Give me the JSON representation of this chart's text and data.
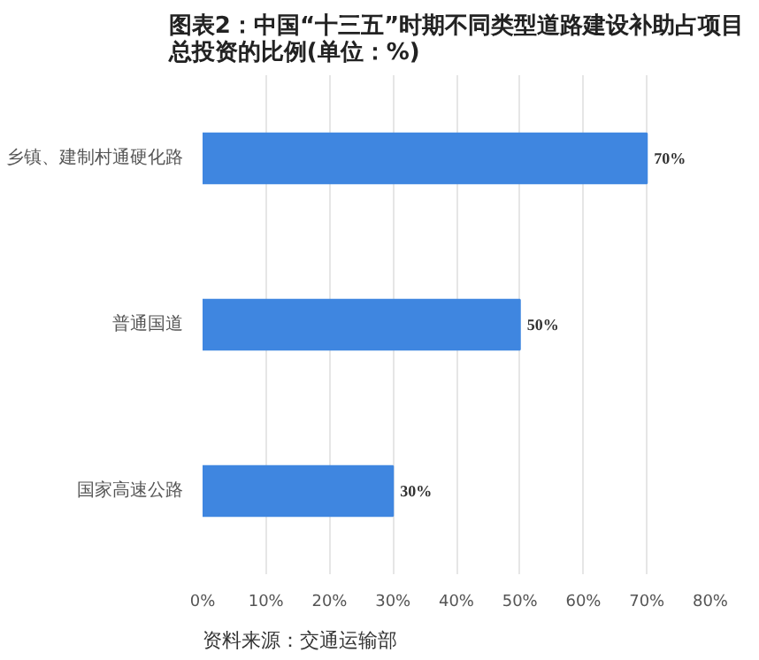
{
  "chart_data": {
    "type": "bar",
    "orientation": "horizontal",
    "title": "图表2：中国“十三五”时期不同类型道路建设补助占项目总投资的比例(单位：%)",
    "categories": [
      "乡镇、建制村通硬化路",
      "普通国道",
      "国家高速公路"
    ],
    "values": [
      70,
      50,
      30
    ],
    "color": "#3f86e0",
    "value_labels": [
      "70%",
      "50%",
      "30%"
    ],
    "xlim": [
      0,
      80
    ],
    "xticks": [
      {
        "value": 0,
        "label": "0%"
      },
      {
        "value": 10,
        "label": "10%"
      },
      {
        "value": 20,
        "label": "20%"
      },
      {
        "value": 30,
        "label": "30%"
      },
      {
        "value": 40,
        "label": "40%"
      },
      {
        "value": 50,
        "label": "50%"
      },
      {
        "value": 60,
        "label": "60%"
      },
      {
        "value": 70,
        "label": "70%"
      },
      {
        "value": 80,
        "label": "80%"
      }
    ],
    "grid": "x",
    "annotations": [
      "资料来源：交通运输部"
    ]
  }
}
